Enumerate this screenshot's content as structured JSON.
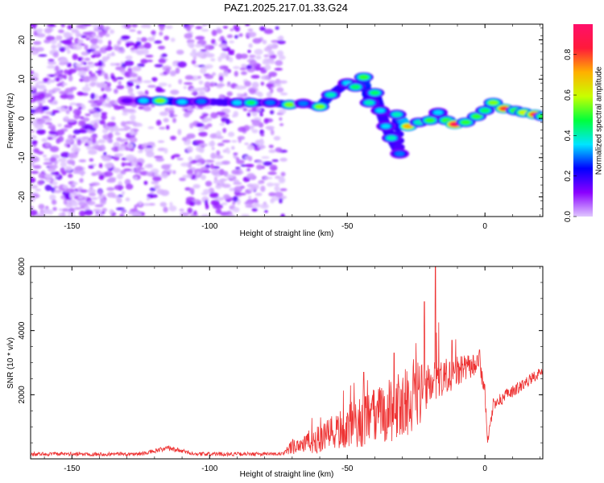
{
  "title": "PAZ1.2025.217.01.33.G24",
  "chart_data": [
    {
      "type": "heatmap",
      "name": "spectrogram",
      "xlabel": "Height of straight line (km)",
      "ylabel": "Frequency (Hz)",
      "xlim": [
        -165,
        21
      ],
      "ylim": [
        -25,
        24
      ],
      "xticks": [
        -150,
        -100,
        -50,
        0
      ],
      "yticks": [
        -20,
        -10,
        0,
        10,
        20
      ],
      "colorbar": {
        "label": "Normalized spectral amplitude",
        "range": [
          0,
          0.95
        ],
        "ticks": [
          0.0,
          0.2,
          0.4,
          0.6,
          0.8
        ],
        "colors": [
          "#e0c8ff",
          "#8a00ff",
          "#0000ff",
          "#00e5ff",
          "#00ff3c",
          "#c8ff00",
          "#ffb000",
          "#ff1a3a",
          "#ff0f6a"
        ]
      },
      "ridge": [
        {
          "x": -130,
          "y": 4.5,
          "a": 0.15
        },
        {
          "x": -124,
          "y": 4.5,
          "a": 0.35
        },
        {
          "x": -118,
          "y": 4.5,
          "a": 0.55
        },
        {
          "x": -110,
          "y": 4.2,
          "a": 0.35
        },
        {
          "x": -103,
          "y": 4.3,
          "a": 0.3
        },
        {
          "x": -90,
          "y": 4.0,
          "a": 0.35
        },
        {
          "x": -85,
          "y": 4.0,
          "a": 0.45
        },
        {
          "x": -78,
          "y": 4.0,
          "a": 0.3
        },
        {
          "x": -71,
          "y": 3.5,
          "a": 0.55
        },
        {
          "x": -66,
          "y": 3.8,
          "a": 0.3
        },
        {
          "x": -60,
          "y": 3.0,
          "a": 0.55
        },
        {
          "x": -56,
          "y": 6.0,
          "a": 0.4
        },
        {
          "x": -50,
          "y": 9.0,
          "a": 0.35
        },
        {
          "x": -47,
          "y": 8.0,
          "a": 0.45
        },
        {
          "x": -44,
          "y": 10.5,
          "a": 0.5
        },
        {
          "x": -42,
          "y": 4.0,
          "a": 0.4
        },
        {
          "x": -40,
          "y": 6.5,
          "a": 0.45
        },
        {
          "x": -38,
          "y": 2.0,
          "a": 0.35
        },
        {
          "x": -36,
          "y": -2.0,
          "a": 0.35
        },
        {
          "x": -34,
          "y": -5.0,
          "a": 0.4
        },
        {
          "x": -31,
          "y": -9.0,
          "a": 0.3
        },
        {
          "x": -32,
          "y": 1.0,
          "a": 0.4
        },
        {
          "x": -28,
          "y": -2.0,
          "a": 0.7
        },
        {
          "x": -24,
          "y": -1.0,
          "a": 0.4
        },
        {
          "x": -20,
          "y": -0.5,
          "a": 0.5
        },
        {
          "x": -17,
          "y": 1.5,
          "a": 0.35
        },
        {
          "x": -14,
          "y": -0.5,
          "a": 0.5
        },
        {
          "x": -11,
          "y": -1.5,
          "a": 0.9
        },
        {
          "x": -7,
          "y": -1.0,
          "a": 0.5
        },
        {
          "x": -3,
          "y": 0.5,
          "a": 0.5
        },
        {
          "x": 0,
          "y": 2.0,
          "a": 0.45
        },
        {
          "x": 3,
          "y": 4.0,
          "a": 0.55
        },
        {
          "x": 7,
          "y": 2.5,
          "a": 0.8
        },
        {
          "x": 11,
          "y": 2.0,
          "a": 0.5
        },
        {
          "x": 14,
          "y": 1.5,
          "a": 0.6
        },
        {
          "x": 18,
          "y": 1.0,
          "a": 0.8
        },
        {
          "x": 21,
          "y": 0.5,
          "a": 0.5
        }
      ]
    },
    {
      "type": "line",
      "name": "snr",
      "xlabel": "Height of straight line (km)",
      "ylabel": "SNR (10 * v/v)",
      "xlim": [
        -165,
        21
      ],
      "ylim": [
        0,
        6000
      ],
      "xticks": [
        -150,
        -100,
        -50,
        0
      ],
      "yticks": [
        2000,
        4000,
        6000
      ],
      "color": "#ee3333",
      "envelope": [
        {
          "x": -165,
          "base": 150,
          "amp": 60
        },
        {
          "x": -125,
          "base": 150,
          "amp": 60
        },
        {
          "x": -115,
          "base": 330,
          "amp": 80
        },
        {
          "x": -105,
          "base": 150,
          "amp": 60
        },
        {
          "x": -73,
          "base": 150,
          "amp": 60
        },
        {
          "x": -70,
          "base": 400,
          "amp": 250
        },
        {
          "x": -60,
          "base": 600,
          "amp": 450
        },
        {
          "x": -50,
          "base": 1000,
          "amp": 700
        },
        {
          "x": -40,
          "base": 1300,
          "amp": 900
        },
        {
          "x": -30,
          "base": 1700,
          "amp": 1100
        },
        {
          "x": -20,
          "base": 2200,
          "amp": 900
        },
        {
          "x": -10,
          "base": 2700,
          "amp": 500
        },
        {
          "x": -2,
          "base": 3000,
          "amp": 300
        },
        {
          "x": 0,
          "base": 2000,
          "amp": 300
        },
        {
          "x": 1,
          "base": 500,
          "amp": 150
        },
        {
          "x": 3,
          "base": 1700,
          "amp": 200
        },
        {
          "x": 10,
          "base": 2100,
          "amp": 200
        },
        {
          "x": 21,
          "base": 2750,
          "amp": 150
        }
      ],
      "spikes": [
        {
          "x": -44,
          "y": 2700
        },
        {
          "x": -33,
          "y": 3300
        },
        {
          "x": -22,
          "y": 4900
        },
        {
          "x": -18,
          "y": 6000
        },
        {
          "x": -12,
          "y": 3700
        },
        {
          "x": -2,
          "y": 3400
        }
      ]
    }
  ]
}
